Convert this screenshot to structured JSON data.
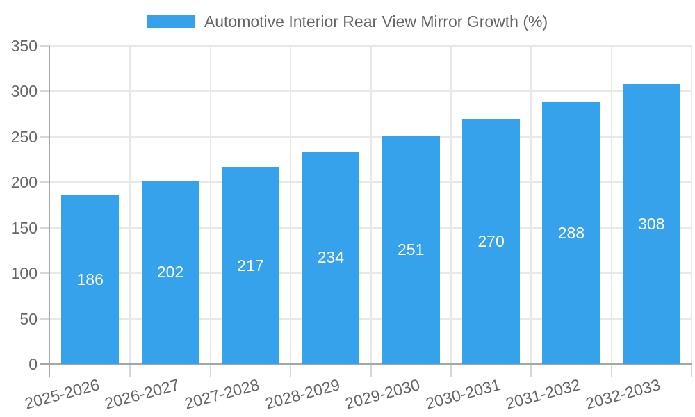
{
  "chart_data": {
    "type": "bar",
    "legend": {
      "position": "top-center",
      "label": "Automotive Interior Rear View Mirror Growth (%)"
    },
    "categories": [
      "2025-2026",
      "2026-2027",
      "2027-2028",
      "2028-2029",
      "2029-2030",
      "2030-2031",
      "2031-2032",
      "2032-2033"
    ],
    "series": [
      {
        "name": "Automotive Interior Rear View Mirror Growth (%)",
        "values": [
          186,
          202,
          217,
          234,
          251,
          270,
          288,
          308
        ]
      }
    ],
    "value_labels_shown": true,
    "xlabel": "",
    "ylabel": "",
    "ylim": [
      0,
      350
    ],
    "yticks": [
      0,
      50,
      100,
      150,
      200,
      250,
      300,
      350
    ],
    "grid": true,
    "legend_visible": true,
    "colors": {
      "bar": "#36A2EB",
      "value_label": "#ffffff",
      "axis_text": "#666666",
      "grid_line": "#e8e8e8",
      "tick_mark": "#d6d6d6",
      "axis_line": "#a6a6a6",
      "background": "#ffffff"
    }
  }
}
